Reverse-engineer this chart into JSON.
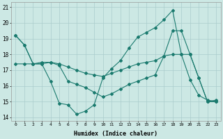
{
  "xlabel": "Humidex (Indice chaleur)",
  "background_color": "#cce8e4",
  "grid_color": "#aacccc",
  "line_color": "#1a7a6e",
  "xlim": [
    -0.5,
    23.5
  ],
  "ylim": [
    13.8,
    21.3
  ],
  "xticks": [
    0,
    1,
    2,
    3,
    4,
    5,
    6,
    7,
    8,
    9,
    10,
    11,
    12,
    13,
    14,
    15,
    16,
    17,
    18,
    19,
    20,
    21,
    22,
    23
  ],
  "yticks": [
    14,
    15,
    16,
    17,
    18,
    19,
    20,
    21
  ],
  "line1_x": [
    0,
    1,
    2,
    3,
    4,
    5,
    6,
    7,
    8,
    9,
    10,
    11,
    12,
    13,
    14,
    15,
    16,
    17,
    18,
    19,
    20,
    21,
    22,
    23
  ],
  "line1_y": [
    19.2,
    18.6,
    17.4,
    17.4,
    16.3,
    14.9,
    14.8,
    14.2,
    14.4,
    14.8,
    16.5,
    17.1,
    17.6,
    18.4,
    19.1,
    19.4,
    19.7,
    20.2,
    20.8,
    18.0,
    16.4,
    15.4,
    15.1,
    15.0
  ],
  "line2_x": [
    0,
    1,
    2,
    3,
    4,
    5,
    6,
    7,
    8,
    9,
    10,
    11,
    12,
    13,
    14,
    15,
    16,
    17,
    18,
    19,
    20,
    21,
    22,
    23
  ],
  "line2_y": [
    17.4,
    17.4,
    17.4,
    17.4,
    17.5,
    17.3,
    16.3,
    16.1,
    15.9,
    15.6,
    15.3,
    15.5,
    15.8,
    16.1,
    16.3,
    16.5,
    16.7,
    17.9,
    18.0,
    18.0,
    18.0,
    16.5,
    15.0,
    15.0
  ],
  "line3_x": [
    0,
    1,
    2,
    3,
    4,
    5,
    6,
    7,
    8,
    9,
    10,
    11,
    12,
    13,
    14,
    15,
    16,
    17,
    18,
    19,
    20,
    21,
    22,
    23
  ],
  "line3_y": [
    19.2,
    18.6,
    17.4,
    17.5,
    17.5,
    17.4,
    17.2,
    17.0,
    16.8,
    16.7,
    16.6,
    16.8,
    17.0,
    17.2,
    17.4,
    17.5,
    17.6,
    17.9,
    19.5,
    19.5,
    18.0,
    16.5,
    15.0,
    15.1
  ]
}
